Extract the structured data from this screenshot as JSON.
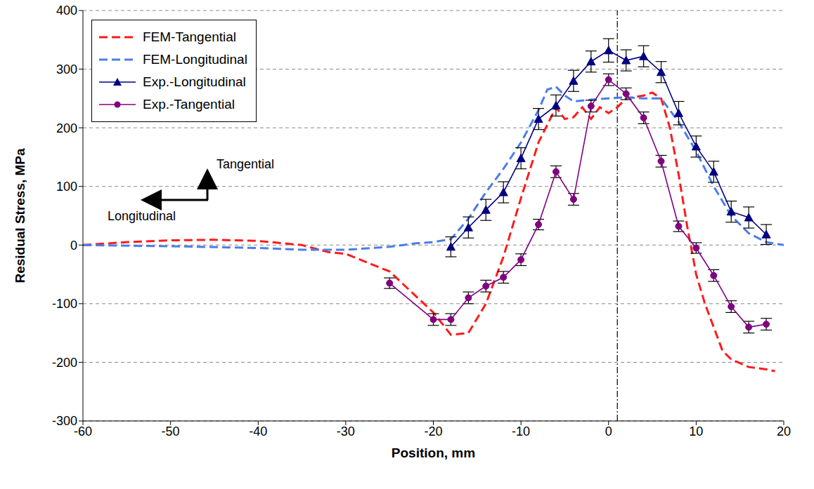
{
  "chart_data": {
    "type": "line",
    "x_label": "Position, mm",
    "y_label": "Residual Stress, MPa",
    "xlim": [
      -60,
      20
    ],
    "xticks": [
      -60,
      -50,
      -40,
      -30,
      -20,
      -10,
      0,
      10,
      20
    ],
    "ylim": [
      -300,
      400
    ],
    "yticks": [
      -300,
      -200,
      -100,
      0,
      100,
      200,
      300,
      400
    ],
    "grid": true,
    "legend": "upper left",
    "reference_x": 1,
    "annotations": [
      "Tangential",
      "Longitudinal"
    ],
    "series": [
      {
        "name": "FEM-Tangential",
        "color": "#ff1a1a",
        "line_style": "dashed",
        "marker": "none",
        "x": [
          -60,
          -55,
          -50,
          -45,
          -40,
          -35,
          -32,
          -30,
          -25,
          -20,
          -18,
          -16,
          -14,
          -12,
          -10,
          -8,
          -6,
          -5,
          -4,
          -3,
          -2,
          -1,
          0,
          1,
          2,
          4,
          5,
          6,
          7,
          8,
          9,
          10,
          11,
          12,
          13,
          14,
          16,
          18,
          19
        ],
        "values": [
          0,
          5,
          8,
          9,
          7,
          0,
          -12,
          -15,
          -45,
          -115,
          -153,
          -150,
          -100,
          -20,
          80,
          175,
          235,
          215,
          218,
          235,
          215,
          235,
          225,
          235,
          250,
          255,
          260,
          250,
          200,
          120,
          30,
          -50,
          -100,
          -140,
          -180,
          -195,
          -208,
          -212,
          -215
        ]
      },
      {
        "name": "FEM-Longitudinal",
        "color": "#4a7ee6",
        "line_style": "dashed",
        "marker": "none",
        "x": [
          -60,
          -50,
          -40,
          -35,
          -30,
          -25,
          -22,
          -20,
          -18,
          -16,
          -14,
          -12,
          -10,
          -8,
          -7,
          -6,
          -5,
          -4,
          -2,
          0,
          2,
          4,
          6,
          8,
          10,
          12,
          14,
          16,
          18,
          20
        ],
        "values": [
          0,
          -2,
          -5,
          -8,
          -8,
          -3,
          3,
          5,
          10,
          45,
          90,
          130,
          175,
          230,
          265,
          270,
          255,
          245,
          248,
          250,
          252,
          250,
          250,
          210,
          160,
          100,
          50,
          20,
          5,
          0
        ]
      },
      {
        "name": "Exp.-Longitudinal",
        "color": "#000080",
        "line_style": "solid",
        "marker": "triangle",
        "x": [
          -18,
          -16,
          -14,
          -12,
          -10,
          -8,
          -6,
          -4,
          -2,
          0,
          2,
          4,
          6,
          8,
          10,
          12,
          14,
          16,
          18
        ],
        "values": [
          -3,
          30,
          60,
          90,
          148,
          215,
          238,
          280,
          313,
          332,
          315,
          322,
          295,
          225,
          168,
          125,
          57,
          47,
          18
        ],
        "errors": [
          17,
          18,
          18,
          18,
          18,
          18,
          18,
          18,
          18,
          20,
          18,
          18,
          18,
          20,
          18,
          18,
          18,
          18,
          17
        ]
      },
      {
        "name": "Exp.-Tangential",
        "color": "#800080",
        "line_style": "solid",
        "marker": "circle",
        "x": [
          -25,
          -20,
          -18,
          -16,
          -14,
          -12,
          -10,
          -8,
          -6,
          -4,
          -2,
          0,
          2,
          4,
          6,
          8,
          10,
          12,
          14,
          16,
          18
        ],
        "values": [
          -65,
          -127,
          -127,
          -90,
          -70,
          -55,
          -25,
          35,
          125,
          78,
          237,
          282,
          258,
          217,
          143,
          32,
          -5,
          -52,
          -105,
          -140,
          -135
        ],
        "errors": [
          9,
          10,
          10,
          10,
          10,
          10,
          10,
          9,
          10,
          10,
          10,
          10,
          10,
          10,
          10,
          9,
          9,
          10,
          10,
          10,
          10
        ]
      }
    ]
  }
}
